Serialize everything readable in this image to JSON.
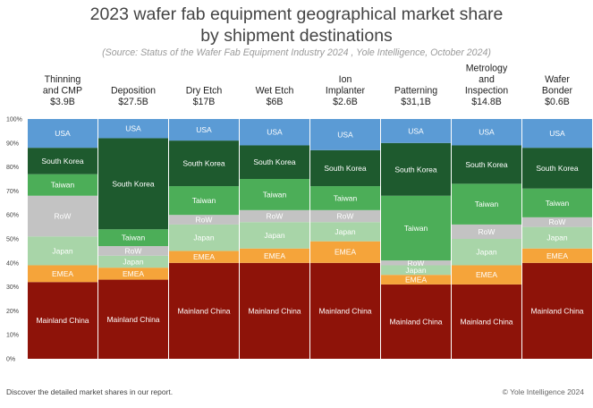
{
  "chart_data": {
    "type": "bar",
    "stacked": true,
    "title": "2023 wafer fab equipment geographical market share",
    "title_line2": "by shipment destinations",
    "subtitle": "(Source: Status of the Wafer Fab Equipment Industry 2024 , Yole Intelligence, October 2024)",
    "categories": [
      [
        "Thinning",
        "and CMP",
        "$3.9B"
      ],
      [
        "Deposition",
        "$27.5B"
      ],
      [
        "Dry Etch",
        "$17B"
      ],
      [
        "Wet Etch",
        "$6B"
      ],
      [
        "Ion",
        "Implanter",
        "$2.6B"
      ],
      [
        "Patterning",
        "$31,1B"
      ],
      [
        "Metrology",
        "and",
        "Inspection",
        "$14.8B"
      ],
      [
        "Wafer",
        "Bonder",
        "$0.6B"
      ]
    ],
    "yticks": [
      "0%",
      "10%",
      "20%",
      "30%",
      "40%",
      "50%",
      "60%",
      "70%",
      "80%",
      "90%",
      "100%"
    ],
    "ylim": [
      0,
      100
    ],
    "series": [
      {
        "name": "Mainland China",
        "color": "#8e1309",
        "text_color": "#ffffff",
        "values": [
          32,
          33,
          40,
          40,
          40,
          31,
          31,
          40
        ]
      },
      {
        "name": "EMEA",
        "color": "#f5a43a",
        "text_color": "#ffffff",
        "values": [
          7,
          5,
          5,
          6,
          9,
          4,
          8,
          6
        ]
      },
      {
        "name": "Japan",
        "color": "#a8d5a8",
        "text_color": "#ffffff",
        "values": [
          12,
          5,
          11,
          11,
          8,
          4,
          11,
          9
        ]
      },
      {
        "name": "RoW",
        "color": "#c3c3c3",
        "text_color": "#ffffff",
        "values": [
          17,
          4,
          4,
          5,
          5,
          2,
          6,
          4
        ]
      },
      {
        "name": "Taiwan",
        "color": "#4cae58",
        "text_color": "#ffffff",
        "values": [
          9,
          7,
          12,
          13,
          10,
          27,
          17,
          12
        ]
      },
      {
        "name": "South Korea",
        "color": "#1e5a2e",
        "text_color": "#ffffff",
        "values": [
          11,
          38,
          19,
          14,
          15,
          22,
          16,
          17
        ]
      },
      {
        "name": "USA",
        "color": "#5b9bd5",
        "text_color": "#ffffff",
        "values": [
          12,
          8,
          9,
          11,
          13,
          10,
          11,
          12
        ]
      }
    ]
  },
  "footer": {
    "left": "Discover the detailed market shares in our report.",
    "right": "© Yole Intelligence 2024"
  }
}
